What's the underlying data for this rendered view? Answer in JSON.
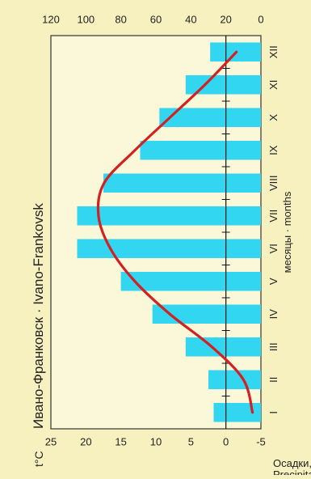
{
  "chart_data": {
    "type": "bar+line",
    "orientation": "rotated 90° counter-clockwise (months run top→bottom of image, values increase toward the left)",
    "title": "Ивано-Франковск · Ivano-Frankovsk",
    "xlabel": "месяцы · months",
    "temp_axis_label": "t°C",
    "precip_axis_label_ru": "Осадки, мм",
    "precip_axis_label_en": "Precipitation, mm",
    "categories": [
      "I",
      "II",
      "III",
      "IV",
      "V",
      "VI",
      "VII",
      "VIII",
      "IX",
      "X",
      "XI",
      "XII"
    ],
    "temperature_ylim": [
      -5,
      25
    ],
    "temperature_ticks": [
      "25",
      "20",
      "15",
      "10",
      "5",
      "0",
      "-5"
    ],
    "precipitation_ylim": [
      0,
      120
    ],
    "precipitation_ticks": [
      "120",
      "100",
      "80",
      "60",
      "40",
      "20",
      "0"
    ],
    "grid": false,
    "series": [
      {
        "kind": "bar",
        "axis": "precipitation",
        "color": "#33d6f0",
        "values": [
          27,
          30,
          43,
          62,
          80,
          105,
          105,
          90,
          69,
          58,
          43,
          29
        ]
      },
      {
        "kind": "line",
        "axis": "temperature",
        "color": "#d32020",
        "values": [
          -3.8,
          -2.5,
          2.0,
          8.0,
          13.0,
          16.5,
          18.2,
          17.4,
          13.0,
          8.0,
          3.0,
          -1.5
        ]
      }
    ]
  }
}
